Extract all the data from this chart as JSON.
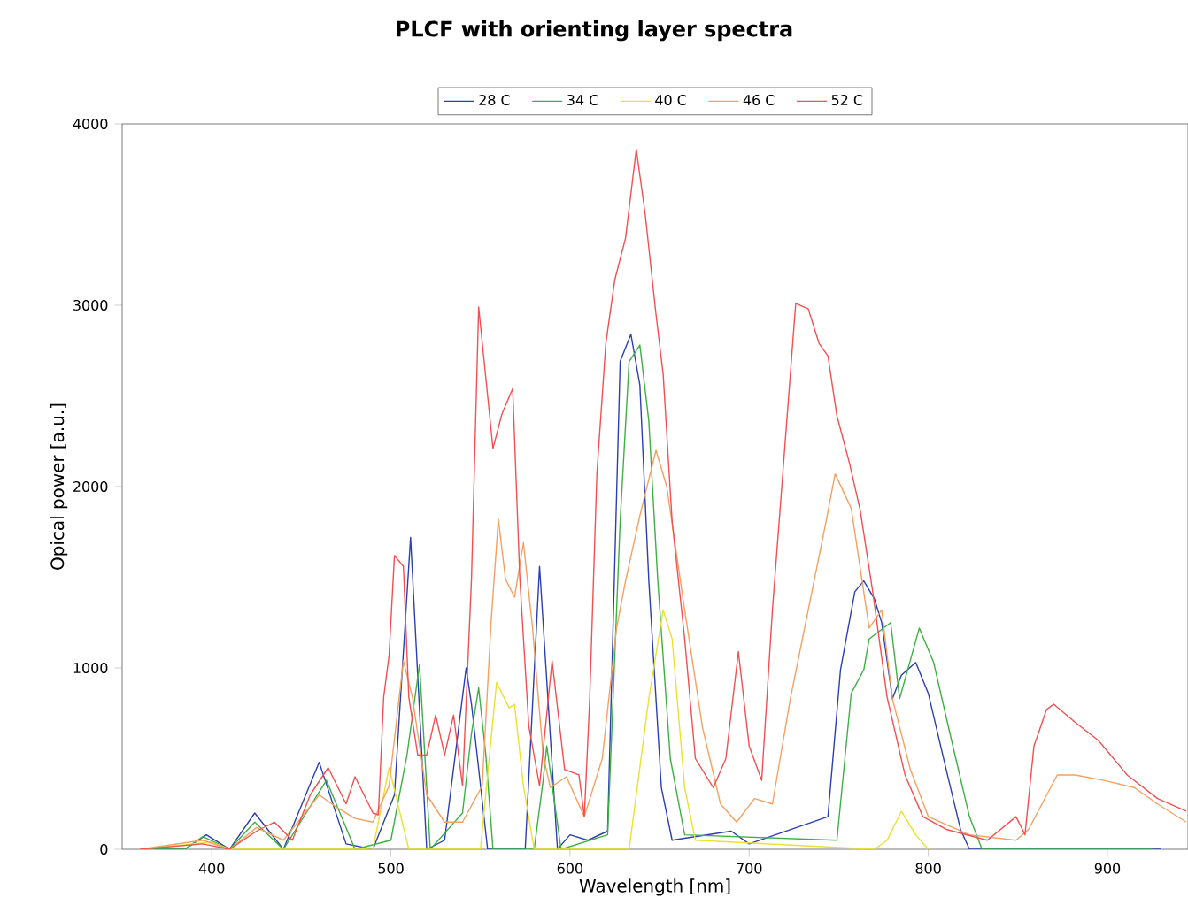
{
  "chart_data": {
    "type": "line",
    "title": "PLCF with orienting layer spectra",
    "xlabel": "Wavelength [nm]",
    "ylabel": "Opical power [a.u.]",
    "xlim": [
      350,
      945
    ],
    "ylim": [
      0,
      4000
    ],
    "xticks": [
      400,
      500,
      600,
      700,
      800,
      900
    ],
    "yticks": [
      0,
      1000,
      2000,
      3000,
      4000
    ],
    "legend": "top",
    "series": [
      {
        "name": "28 C",
        "color": "#2a3fb0",
        "x": [
          360,
          385,
          397,
          410,
          424,
          440,
          460,
          475,
          490,
          502,
          511,
          520,
          530,
          542,
          545,
          554,
          575,
          583,
          593,
          600,
          610,
          621,
          628,
          634,
          639,
          644,
          651,
          657,
          690,
          700,
          744,
          751,
          759,
          764,
          770,
          774,
          780,
          785,
          793,
          800,
          810,
          818,
          823,
          930
        ],
        "values": [
          0,
          0,
          80,
          0,
          200,
          0,
          480,
          30,
          0,
          300,
          1720,
          0,
          50,
          1000,
          800,
          0,
          0,
          1560,
          0,
          80,
          50,
          100,
          2690,
          2840,
          2560,
          1480,
          340,
          50,
          100,
          30,
          180,
          990,
          1420,
          1480,
          1380,
          1250,
          830,
          960,
          1030,
          860,
          440,
          110,
          0,
          0
        ]
      },
      {
        "name": "34 C",
        "color": "#3cb043",
        "x": [
          360,
          385,
          395,
          410,
          424,
          440,
          464,
          480,
          500,
          509,
          516,
          522,
          540,
          545,
          549,
          553,
          557,
          580,
          585,
          587,
          595,
          621,
          628,
          633,
          639,
          644,
          649,
          656,
          664,
          749,
          757,
          764,
          767,
          779,
          784,
          795,
          803,
          813,
          823,
          830,
          925
        ],
        "values": [
          0,
          0,
          70,
          0,
          150,
          0,
          380,
          0,
          50,
          520,
          1020,
          0,
          200,
          640,
          890,
          520,
          0,
          0,
          380,
          570,
          0,
          80,
          1810,
          2690,
          2780,
          2360,
          1480,
          500,
          80,
          50,
          860,
          990,
          1160,
          1250,
          830,
          1220,
          1030,
          600,
          180,
          0,
          0
        ]
      },
      {
        "name": "40 C",
        "color": "#ece030",
        "x": [
          360,
          400,
          410,
          490,
          499,
          510,
          550,
          559,
          566,
          569,
          574,
          580,
          633,
          644,
          652,
          657,
          664,
          670,
          770,
          777,
          785,
          793,
          800
        ],
        "values": [
          0,
          40,
          0,
          0,
          450,
          0,
          0,
          920,
          780,
          800,
          350,
          0,
          0,
          830,
          1320,
          1160,
          340,
          50,
          0,
          50,
          210,
          80,
          0
        ]
      },
      {
        "name": "46 C",
        "color": "#f5a060",
        "x": [
          360,
          395,
          410,
          425,
          440,
          460,
          470,
          480,
          490,
          499,
          507,
          512,
          520,
          530,
          540,
          551,
          556,
          560,
          564,
          569,
          574,
          579,
          585,
          589,
          598,
          608,
          618,
          626,
          631,
          639,
          648,
          654,
          664,
          674,
          684,
          693,
          703,
          713,
          723,
          733,
          743,
          748,
          757,
          767,
          774,
          780,
          790,
          800,
          823,
          849,
          856,
          872,
          882,
          898,
          915,
          928,
          944
        ],
        "values": [
          0,
          50,
          0,
          120,
          50,
          300,
          230,
          170,
          150,
          350,
          1040,
          840,
          300,
          150,
          150,
          350,
          1260,
          1820,
          1490,
          1390,
          1690,
          1230,
          520,
          340,
          400,
          180,
          500,
          1220,
          1480,
          1840,
          2200,
          2000,
          1320,
          670,
          250,
          150,
          280,
          250,
          830,
          1320,
          1810,
          2070,
          1880,
          1220,
          1320,
          830,
          440,
          180,
          80,
          50,
          110,
          410,
          410,
          380,
          340,
          250,
          150
        ]
      },
      {
        "name": "52 C",
        "color": "#f05050",
        "x": [
          360,
          395,
          410,
          425,
          435,
          445,
          455,
          465,
          475,
          480,
          490,
          493,
          496,
          499,
          502,
          507,
          510,
          515,
          520,
          525,
          530,
          535,
          540,
          545,
          549,
          553,
          557,
          562,
          568,
          572,
          577,
          583,
          590,
          597,
          605,
          608,
          611,
          615,
          620,
          625,
          631,
          637,
          642,
          648,
          652,
          657,
          664,
          670,
          680,
          687,
          694,
          700,
          707,
          713,
          718,
          723,
          726,
          733,
          739,
          744,
          749,
          756,
          762,
          769,
          777,
          787,
          797,
          810,
          833,
          849,
          854,
          859,
          866,
          870,
          882,
          895,
          911,
          928,
          944
        ],
        "values": [
          0,
          30,
          0,
          100,
          150,
          50,
          300,
          450,
          250,
          400,
          200,
          190,
          840,
          1070,
          1620,
          1560,
          840,
          520,
          520,
          740,
          520,
          740,
          350,
          1490,
          2990,
          2600,
          2210,
          2400,
          2540,
          1490,
          680,
          350,
          1040,
          440,
          410,
          180,
          830,
          2070,
          2790,
          3140,
          3370,
          3860,
          3500,
          2950,
          2620,
          1810,
          1160,
          500,
          340,
          500,
          1090,
          570,
          380,
          1320,
          1970,
          2620,
          3010,
          2980,
          2790,
          2720,
          2390,
          2130,
          1870,
          1420,
          840,
          410,
          180,
          110,
          50,
          180,
          80,
          570,
          770,
          800,
          700,
          600,
          410,
          280,
          210
        ]
      }
    ]
  }
}
